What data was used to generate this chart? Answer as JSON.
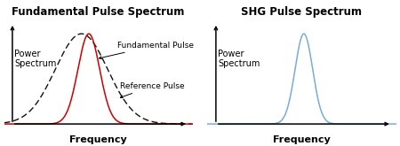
{
  "left_title": "Fundamental Pulse Spectrum",
  "right_title": "SHG Pulse Spectrum",
  "ylabel": "Power\nSpectrum",
  "xlabel": "Frequency",
  "fundamental_color": "#cc0000",
  "reference_color": "#111111",
  "shg_color": "#7aaadd",
  "fundamental_label": "Fundamental Pulse",
  "reference_label": "Reference Pulse",
  "bg_color": "#ffffff",
  "title_fontsize": 8.5,
  "label_fontsize": 7,
  "axis_label_fontsize": 8,
  "annot_fontsize": 6.5,
  "ref_mu": -0.3,
  "ref_sigma": 1.25,
  "fund_mu": 0.05,
  "fund_sigma": 0.52,
  "shg_mu": 0.6,
  "shg_sigma": 0.42
}
